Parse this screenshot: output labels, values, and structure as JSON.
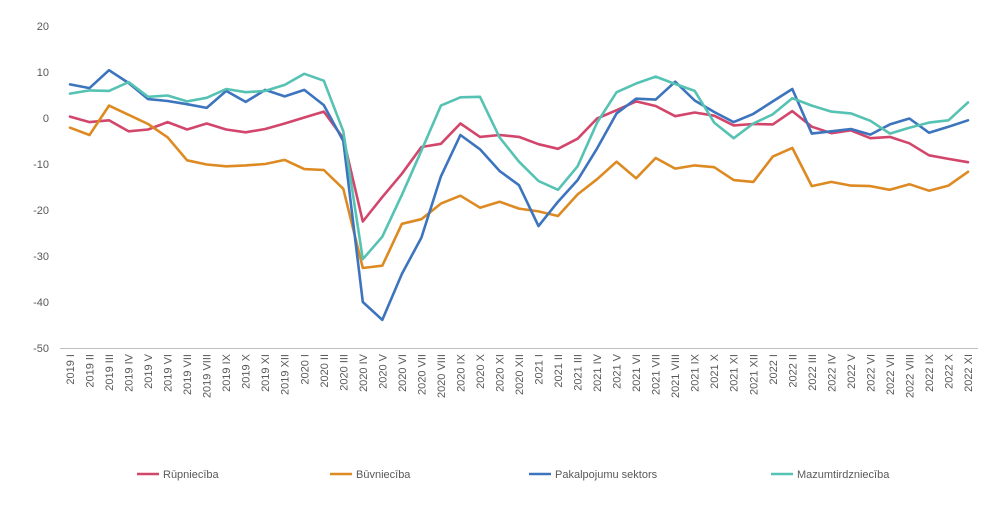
{
  "chart_data": {
    "type": "line",
    "title": "",
    "xlabel": "",
    "ylabel": "",
    "ylim": [
      -50,
      20
    ],
    "yticks": [
      20,
      10,
      0,
      -10,
      -20,
      -30,
      -40,
      -50
    ],
    "grid": false,
    "legend_position": "bottom",
    "categories": [
      "2019 I",
      "2019 II",
      "2019 III",
      "2019 IV",
      "2019 V",
      "2019 VI",
      "2019 VII",
      "2019 VIII",
      "2019 IX",
      "2019 X",
      "2019 XI",
      "2019 XII",
      "2020 I",
      "2020 II",
      "2020 III",
      "2020 IV",
      "2020 V",
      "2020 VI",
      "2020 VII",
      "2020 VIII",
      "2020 IX",
      "2020 X",
      "2020 XI",
      "2020 XII",
      "2021 I",
      "2021 II",
      "2021 III",
      "2021 IV",
      "2021 V",
      "2021 VI",
      "2021 VII",
      "2021 VIII",
      "2021 IX",
      "2021 X",
      "2021 XI",
      "2021 XII",
      "2022 I",
      "2022 II",
      "2022 III",
      "2022 IV",
      "2022 V",
      "2022 VI",
      "2022 VII",
      "2022 VIII",
      "2022 IX",
      "2022 X",
      "2022 XI"
    ],
    "series": [
      {
        "name": "Rūpniecība",
        "color": "#d2466c",
        "values": [
          0.3,
          -0.9,
          -0.5,
          -2.9,
          -2.5,
          -0.9,
          -2.5,
          -1.2,
          -2.5,
          -3.1,
          -2.4,
          -1.2,
          0.1,
          1.4,
          -4.4,
          -22.5,
          -17.2,
          -12.1,
          -6.3,
          -5.6,
          -1.2,
          -4.1,
          -3.7,
          -4.1,
          -5.7,
          -6.7,
          -4.5,
          -0.1,
          1.7,
          3.6,
          2.6,
          0.4,
          1.2,
          0.5,
          -1.6,
          -1.3,
          -1.4,
          1.5,
          -1.9,
          -3.3,
          -2.7,
          -4.4,
          -4.1,
          -5.5,
          -8.1,
          -8.9,
          -9.6
        ]
      },
      {
        "name": "Būvniecība",
        "color": "#dd8a22",
        "values": [
          -2.1,
          -3.7,
          2.7,
          0.7,
          -1.3,
          -4.2,
          -9.2,
          -10.1,
          -10.5,
          -10.3,
          -10.0,
          -9.1,
          -11.1,
          -11.3,
          -15.4,
          -32.6,
          -32.1,
          -23.0,
          -22.0,
          -18.6,
          -16.9,
          -19.5,
          -18.2,
          -19.7,
          -20.3,
          -21.3,
          -16.6,
          -13.3,
          -9.5,
          -13.1,
          -8.7,
          -11.0,
          -10.3,
          -10.7,
          -13.5,
          -13.9,
          -8.4,
          -6.5,
          -14.8,
          -13.9,
          -14.7,
          -14.8,
          -15.6,
          -14.4,
          -15.8,
          -14.7,
          -11.7
        ]
      },
      {
        "name": "Pakalpojumu sektors",
        "color": "#3c74be",
        "values": [
          7.3,
          6.5,
          10.4,
          7.6,
          4.1,
          3.7,
          3.0,
          2.2,
          5.9,
          3.5,
          6.1,
          4.7,
          6.1,
          2.8,
          -5.0,
          -40.0,
          -43.9,
          -33.9,
          -26.0,
          -12.7,
          -3.7,
          -6.8,
          -11.5,
          -14.6,
          -23.5,
          -18.2,
          -13.5,
          -6.6,
          1.0,
          4.2,
          4.0,
          7.9,
          3.8,
          1.3,
          -0.9,
          0.9,
          3.6,
          6.3,
          -3.4,
          -2.9,
          -2.4,
          -3.6,
          -1.4,
          -0.1,
          -3.2,
          -1.9,
          -0.5
        ]
      },
      {
        "name": "Mazumtirdzniecība",
        "color": "#56c2b3",
        "values": [
          5.3,
          6.0,
          5.9,
          7.8,
          4.6,
          4.9,
          3.6,
          4.4,
          6.3,
          5.6,
          5.9,
          7.2,
          9.6,
          8.1,
          -2.9,
          -30.7,
          -25.8,
          -16.7,
          -7.1,
          2.7,
          4.5,
          4.6,
          -4.2,
          -9.5,
          -13.7,
          -15.6,
          -10.5,
          -1.0,
          5.6,
          7.5,
          9.0,
          7.4,
          5.9,
          -1.0,
          -4.4,
          -1.2,
          0.8,
          4.3,
          2.7,
          1.4,
          1.0,
          -0.6,
          -3.4,
          -2.1,
          -1.0,
          -0.5,
          3.4
        ]
      }
    ]
  }
}
